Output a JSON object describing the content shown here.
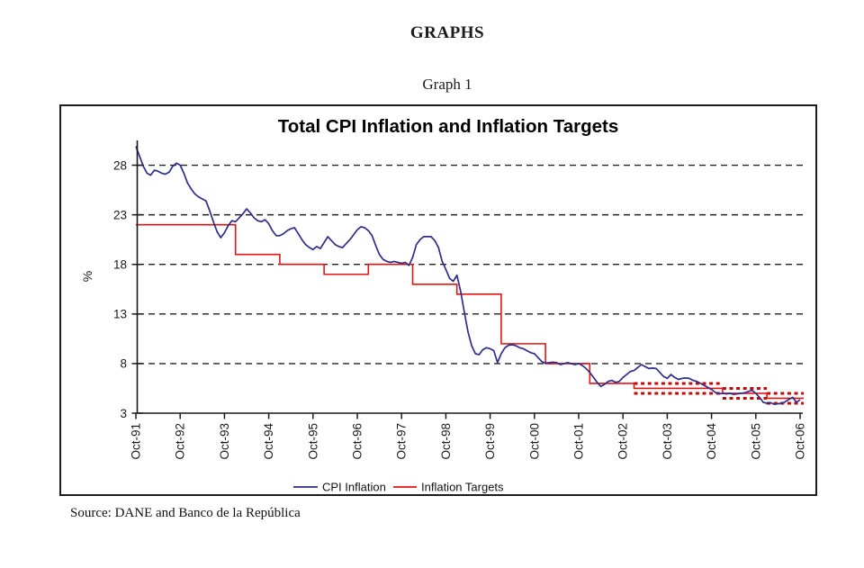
{
  "page": {
    "heading": "GRAPHS",
    "graph_label": "Graph 1",
    "source_note": "Source: DANE and Banco de la República"
  },
  "chart_data": {
    "type": "line",
    "title": "Total CPI Inflation and Inflation Targets",
    "xlabel": "",
    "ylabel": "%",
    "ylim": [
      3,
      30.5
    ],
    "yticks": [
      3,
      8,
      13,
      18,
      23,
      28
    ],
    "gridlines_at": [
      8,
      13,
      18,
      23,
      28
    ],
    "grid_style": "dashed-horizontal",
    "legend_position": "bottom-center",
    "x_domain": [
      1991.75,
      2006.75
    ],
    "x_tick_labels": [
      "Oct-91",
      "Oct-92",
      "Oct-93",
      "Oct-94",
      "Oct-95",
      "Oct-96",
      "Oct-97",
      "Oct-98",
      "Oct-99",
      "Oct-00",
      "Oct-01",
      "Oct-02",
      "Oct-03",
      "Oct-04",
      "Oct-05",
      "Oct-06"
    ],
    "axis_color": "#1a1a1a",
    "series": [
      {
        "name": "CPI Inflation",
        "color": "#2d2d8c",
        "style": "line",
        "x_start": 1991.75,
        "x_step_months": 1,
        "values": [
          29.9,
          28.9,
          27.9,
          27.2,
          27.0,
          27.5,
          27.4,
          27.2,
          27.1,
          27.3,
          27.9,
          28.2,
          28.0,
          27.2,
          26.2,
          25.6,
          25.1,
          24.8,
          24.6,
          24.4,
          23.4,
          22.3,
          21.3,
          20.7,
          21.2,
          21.9,
          22.4,
          22.3,
          22.7,
          23.1,
          23.6,
          23.2,
          22.7,
          22.4,
          22.3,
          22.5,
          22.1,
          21.4,
          20.9,
          20.9,
          21.1,
          21.4,
          21.6,
          21.7,
          21.1,
          20.5,
          20.0,
          19.7,
          19.5,
          19.8,
          19.6,
          20.2,
          20.8,
          20.4,
          20.0,
          19.8,
          19.7,
          20.1,
          20.5,
          21.0,
          21.5,
          21.8,
          21.7,
          21.4,
          20.9,
          19.9,
          19.0,
          18.5,
          18.3,
          18.2,
          18.3,
          18.2,
          18.1,
          18.2,
          17.9,
          18.7,
          20.0,
          20.5,
          20.8,
          20.8,
          20.8,
          20.4,
          19.7,
          18.3,
          17.5,
          16.6,
          16.3,
          16.9,
          15.3,
          13.2,
          11.2,
          9.8,
          9.0,
          8.9,
          9.4,
          9.6,
          9.5,
          9.3,
          8.1,
          9.0,
          9.6,
          9.85,
          9.9,
          9.8,
          9.6,
          9.5,
          9.3,
          9.1,
          9.0,
          8.6,
          8.2,
          8.05,
          8.1,
          8.15,
          8.1,
          7.9,
          8.0,
          8.1,
          8.0,
          7.9,
          8.0,
          7.8,
          7.5,
          7.1,
          6.6,
          6.1,
          5.7,
          5.9,
          6.2,
          6.3,
          6.1,
          6.2,
          6.6,
          6.9,
          7.2,
          7.3,
          7.6,
          7.9,
          7.7,
          7.5,
          7.55,
          7.5,
          7.1,
          6.7,
          6.5,
          6.9,
          6.6,
          6.4,
          6.5,
          6.55,
          6.5,
          6.3,
          6.2,
          6.0,
          5.8,
          5.6,
          5.4,
          5.1,
          4.95,
          5.0,
          4.95,
          5.0,
          4.9,
          4.95,
          5.0,
          5.05,
          5.2,
          5.3,
          5.0,
          4.6,
          4.1,
          4.0,
          4.05,
          3.9,
          3.95,
          4.0,
          4.15,
          4.4,
          4.6,
          4.1,
          4.35
        ]
      },
      {
        "name": "Inflation Targets",
        "color": "#e41414",
        "style": "step",
        "segments": [
          {
            "from": 1991.75,
            "to": 1994.0,
            "value": 22
          },
          {
            "from": 1994.0,
            "to": 1995.0,
            "value": 19
          },
          {
            "from": 1995.0,
            "to": 1996.0,
            "value": 18
          },
          {
            "from": 1996.0,
            "to": 1997.0,
            "value": 17
          },
          {
            "from": 1997.0,
            "to": 1998.0,
            "value": 18
          },
          {
            "from": 1998.0,
            "to": 1999.0,
            "value": 16
          },
          {
            "from": 1999.0,
            "to": 2000.0,
            "value": 15
          },
          {
            "from": 2000.0,
            "to": 2001.0,
            "value": 10
          },
          {
            "from": 2001.0,
            "to": 2002.0,
            "value": 8
          },
          {
            "from": 2002.0,
            "to": 2003.0,
            "value": 6
          },
          {
            "from": 2003.0,
            "to": 2005.0,
            "value": 5.5
          },
          {
            "from": 2005.0,
            "to": 2006.0,
            "value": 5.0
          },
          {
            "from": 2006.0,
            "to": 2006.83,
            "value": 4.5
          }
        ]
      }
    ],
    "target_bands": [
      {
        "from": 2003.0,
        "to": 2005.0,
        "upper": 6.0,
        "lower": 5.0,
        "color": "#c40808"
      },
      {
        "from": 2005.0,
        "to": 2006.0,
        "upper": 5.5,
        "lower": 4.5,
        "color": "#c40808"
      },
      {
        "from": 2006.0,
        "to": 2006.83,
        "upper": 5.0,
        "lower": 4.0,
        "color": "#c40808"
      }
    ]
  }
}
